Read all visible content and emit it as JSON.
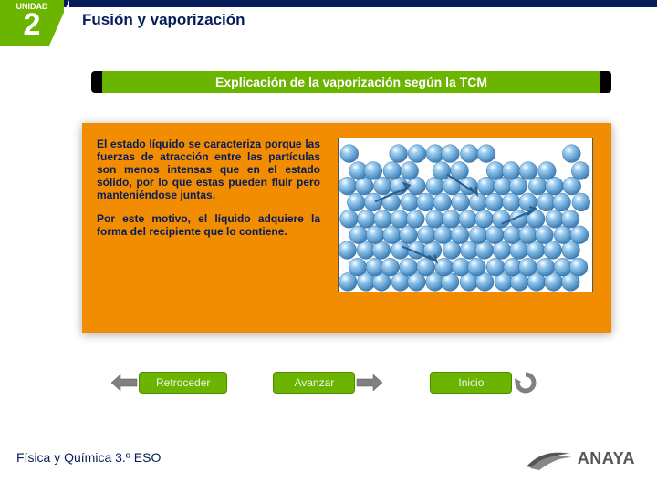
{
  "header": {
    "unit_label": "UNIDAD",
    "unit_number": "2",
    "title": "Fusión y vaporización"
  },
  "subtitle": "Explicación de la vaporización según la TCM",
  "content": {
    "paragraph1": "El estado líquido se caracteriza porque las fuerzas de atracción entre las partículas son menos intensas que en el estado sólido, por lo que estas pueden fluir pero manteniéndose juntas.",
    "paragraph2": "Por este motivo, el líquido adquiere la forma del recipiente que lo contiene.",
    "box_bg": "#f28c00",
    "text_color": "#071d5a"
  },
  "particles": {
    "ball_color_light": "#9dcff2",
    "ball_color_dark": "#3d7fb8",
    "ball_highlight": "#ffffff",
    "background": "#ffffff",
    "ball_radius": 10,
    "arrow_color": "#2b5b8a"
  },
  "nav": {
    "back": "Retroceder",
    "forward": "Avanzar",
    "home": "Inicio",
    "pill_bg": "#6bb400",
    "arrow_fill": "#777777"
  },
  "footer": {
    "course": "Física y Química 3.º ESO",
    "publisher": "ANAYA"
  },
  "colors": {
    "green": "#6bb400",
    "navy": "#071d5a",
    "orange": "#f28c00"
  }
}
